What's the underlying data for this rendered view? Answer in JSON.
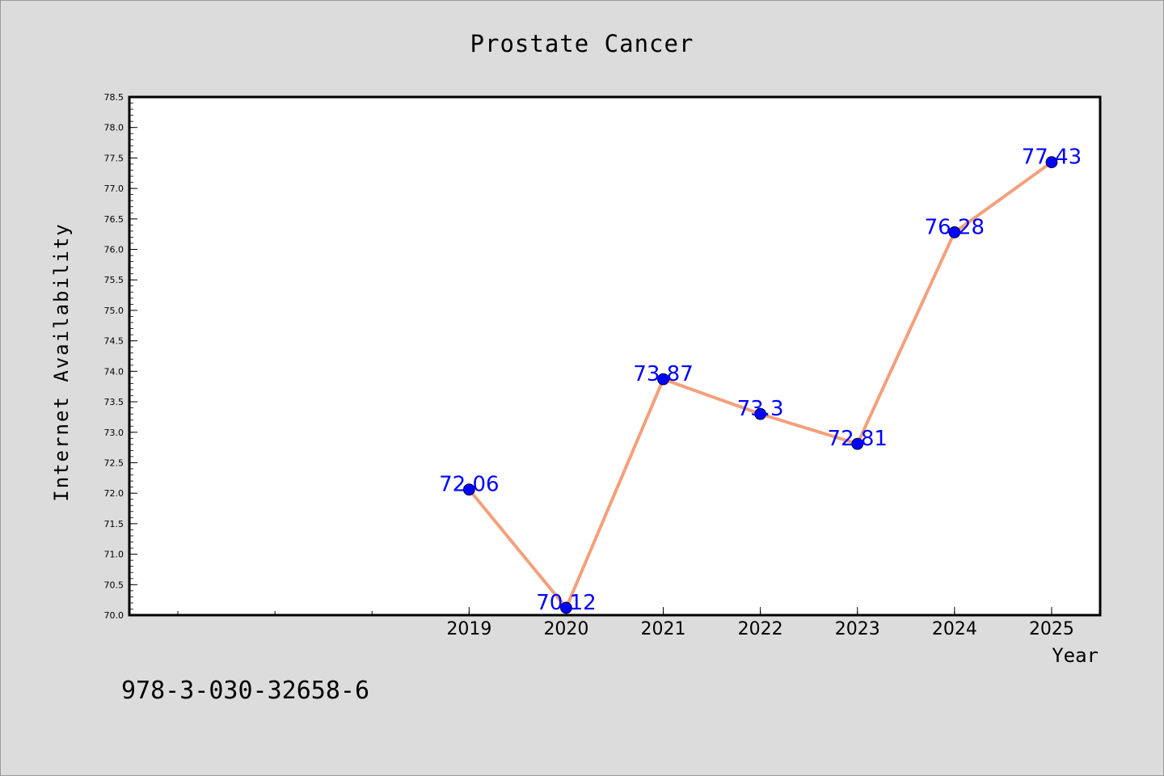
{
  "chart_data": {
    "type": "line",
    "title": "Prostate Cancer",
    "xlabel": "Year",
    "ylabel": "Internet Availability",
    "x": [
      2019,
      2020,
      2021,
      2022,
      2023,
      2024,
      2025
    ],
    "x_tick_labels": [
      "2019",
      "2020",
      "2021",
      "2022",
      "2023",
      "2024",
      "2025"
    ],
    "values": [
      72.06,
      70.12,
      73.87,
      73.3,
      72.81,
      76.28,
      77.43
    ],
    "data_labels": [
      "72.06",
      "70.12",
      "73.87",
      "73.3",
      "72.81",
      "76.28",
      "77.43"
    ],
    "xlim": [
      2015.5,
      2025.5
    ],
    "ylim": [
      70.0,
      78.5
    ],
    "y_ticks": [
      "70.0",
      "70.5",
      "71.0",
      "71.5",
      "72.0",
      "72.5",
      "73.0",
      "73.5",
      "74.0",
      "74.5",
      "75.0",
      "75.5",
      "76.0",
      "76.5",
      "77.0",
      "77.5",
      "78.0",
      "78.5"
    ],
    "grid": false,
    "line_color": "#f4a07c",
    "marker_color": "#0000ff",
    "label_color": "#0000ff",
    "background_color": "#dcdcdc",
    "plot_background_color": "#ffffff"
  },
  "footnote": "978-3-030-32658-6"
}
